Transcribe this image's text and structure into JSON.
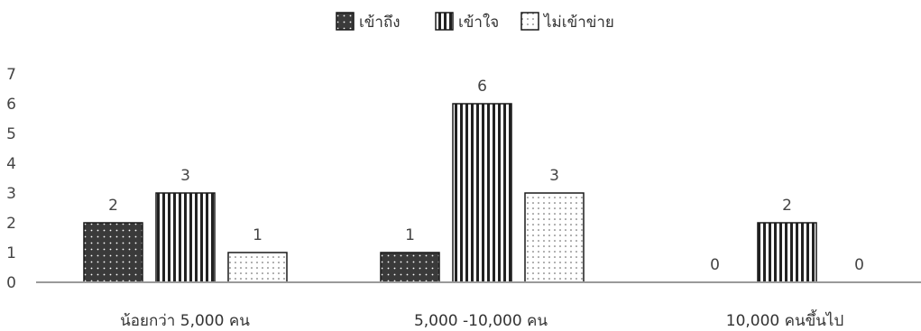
{
  "chart_data": {
    "type": "bar",
    "categories": [
      "น้อยกว่า 5,000 คน",
      "5,000 -10,000 คน",
      "10,000 คนขึ้นไป"
    ],
    "series": [
      {
        "name": "เข้าถึง",
        "values": [
          2,
          1,
          0
        ],
        "pattern": "dark-dots"
      },
      {
        "name": "เข้าใจ",
        "values": [
          3,
          6,
          2
        ],
        "pattern": "vertical-stripes"
      },
      {
        "name": "ไม่เข้าข่าย",
        "values": [
          1,
          3,
          0
        ],
        "pattern": "light-dots"
      }
    ],
    "yticks": [
      "0",
      "1",
      "2",
      "3",
      "4",
      "5",
      "6",
      "7"
    ],
    "ylim": [
      0,
      7
    ],
    "grid": false,
    "legend_position": "top-center",
    "data_labels": true
  }
}
